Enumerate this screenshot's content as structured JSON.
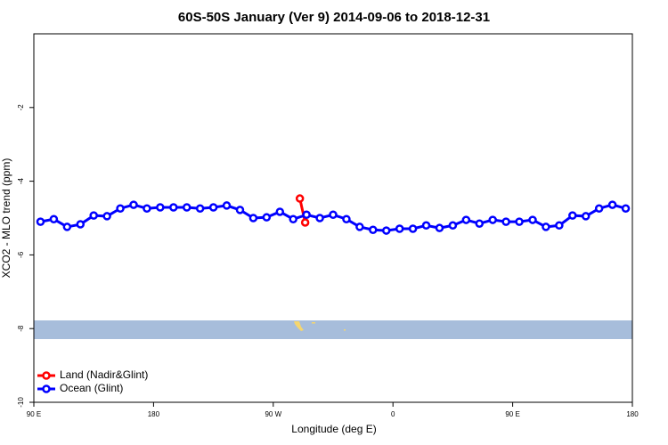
{
  "chart_data": {
    "type": "line",
    "title": "60S-50S January (Ver 9)   2014-09-06 to 2018-12-31",
    "xlabel": "Longitude (deg E)",
    "ylabel": "XCO2 - MLO trend (ppm)",
    "xlim": [
      90,
      540
    ],
    "xticks": [
      {
        "value": 90,
        "label": "90 E"
      },
      {
        "value": 180,
        "label": "180"
      },
      {
        "value": 270,
        "label": "90 W"
      },
      {
        "value": 360,
        "label": "0"
      },
      {
        "value": 450,
        "label": "90 E"
      },
      {
        "value": 540,
        "label": "180"
      }
    ],
    "ylim": [
      -10,
      0
    ],
    "yticks": [
      -10,
      -8,
      -6,
      -4,
      -2
    ],
    "legend": "bottom-left",
    "series": [
      {
        "name": "Land (Nadir&Glint)",
        "color": "#ff0000",
        "x": [
          290,
          294
        ],
        "values": [
          -4.47,
          -5.12
        ]
      },
      {
        "name": "Ocean (Glint)",
        "color": "#0000ff",
        "x": [
          95,
          105,
          115,
          125,
          135,
          145,
          155,
          165,
          175,
          185,
          195,
          205,
          215,
          225,
          235,
          245,
          255,
          265,
          275,
          285,
          295,
          305,
          315,
          325,
          335,
          345,
          355,
          365,
          375,
          385,
          395,
          405,
          415,
          425,
          435,
          445,
          455,
          465,
          475,
          485,
          495,
          505,
          515,
          525,
          535
        ],
        "values": [
          -5.1,
          -5.03,
          -5.24,
          -5.17,
          -4.93,
          -4.95,
          -4.74,
          -4.64,
          -4.74,
          -4.71,
          -4.71,
          -4.71,
          -4.74,
          -4.71,
          -4.66,
          -4.78,
          -5.0,
          -4.98,
          -4.83,
          -5.03,
          -4.91,
          -5.0,
          -4.91,
          -5.03,
          -5.24,
          -5.32,
          -5.34,
          -5.29,
          -5.29,
          -5.2,
          -5.27,
          -5.2,
          -5.05,
          -5.15,
          -5.05,
          -5.1,
          -5.1,
          -5.05,
          -5.24,
          -5.2,
          -4.93,
          -4.95,
          -4.74,
          -4.64,
          -4.74
        ]
      }
    ]
  }
}
